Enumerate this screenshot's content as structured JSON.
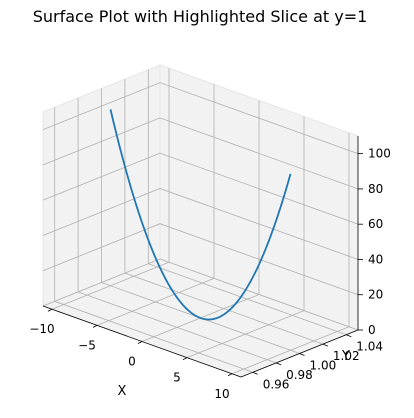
{
  "chart_data": {
    "type": "line",
    "projection": "3d",
    "title": "Surface Plot with Highlighted Slice at y=1",
    "xlabel": "X",
    "ylabel": "Y",
    "zlabel": "",
    "xlim": [
      -11,
      11
    ],
    "ylim": [
      0.95,
      1.05
    ],
    "zlim": [
      0,
      110
    ],
    "x_ticks": [
      "−10",
      "−5",
      "0",
      "5",
      "10"
    ],
    "x_tick_values": [
      -10,
      -5,
      0,
      5,
      10
    ],
    "y_ticks": [
      "0.96",
      "0.98",
      "1.00",
      "1.02",
      "1.04"
    ],
    "y_tick_values": [
      0.96,
      0.98,
      1.0,
      1.02,
      1.04
    ],
    "z_ticks": [
      "0",
      "20",
      "40",
      "60",
      "80",
      "100"
    ],
    "z_tick_values": [
      0,
      20,
      40,
      60,
      80,
      100
    ],
    "grid": true,
    "series": [
      {
        "color": "#1f77b4",
        "x": [
          -10,
          -9,
          -8,
          -7,
          -6,
          -5,
          -4,
          -3,
          -2,
          -1,
          0,
          1,
          2,
          3,
          4,
          5,
          6,
          7,
          8,
          9,
          10
        ],
        "y": [
          1,
          1,
          1,
          1,
          1,
          1,
          1,
          1,
          1,
          1,
          1,
          1,
          1,
          1,
          1,
          1,
          1,
          1,
          1,
          1,
          1
        ],
        "z": [
          100,
          81,
          64,
          49,
          36,
          25,
          16,
          9,
          4,
          1,
          0,
          1,
          4,
          9,
          16,
          25,
          36,
          49,
          64,
          81,
          100
        ]
      }
    ]
  }
}
